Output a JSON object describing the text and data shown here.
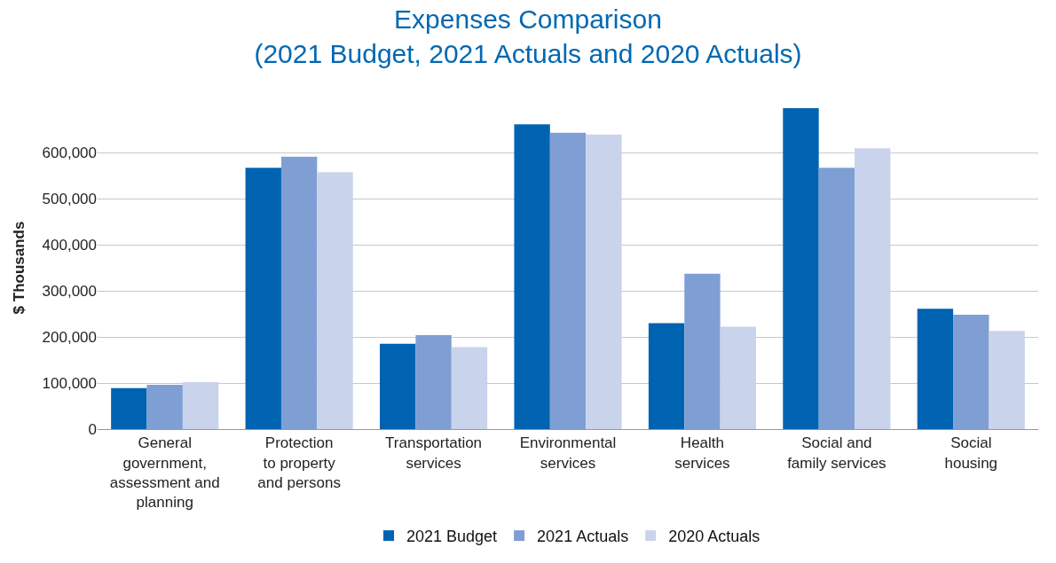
{
  "chart_data": {
    "type": "bar",
    "title": "Expenses Comparison\n(2021 Budget, 2021 Actuals and 2020 Actuals)",
    "ylabel": "$ Thousands",
    "categories": [
      "General\ngovernment,\nassessment and\nplanning",
      "Protection\nto property\nand persons",
      "Transportation\nservices",
      "Environmental\nservices",
      "Health\nservices",
      "Social and\nfamily services",
      "Social\nhousing"
    ],
    "series": [
      {
        "name": "2021 Budget",
        "color": "#0063b1",
        "values": [
          89000,
          567000,
          185000,
          661000,
          230000,
          696000,
          261000
        ]
      },
      {
        "name": "2021 Actuals",
        "color": "#7f9fd4",
        "values": [
          96000,
          591000,
          204000,
          643000,
          337000,
          567000,
          248000
        ]
      },
      {
        "name": "2020 Actuals",
        "color": "#c9d3ec",
        "values": [
          102000,
          557000,
          178000,
          639000,
          222000,
          609000,
          213000
        ]
      }
    ],
    "ylim": [
      0,
      700000
    ],
    "yticks": [
      {
        "value": 0,
        "label": "0"
      },
      {
        "value": 100000,
        "label": "100,000"
      },
      {
        "value": 200000,
        "label": "200,000"
      },
      {
        "value": 300000,
        "label": "300,000"
      },
      {
        "value": 400000,
        "label": "400,000"
      },
      {
        "value": 500000,
        "label": "500,000"
      },
      {
        "value": 600000,
        "label": "600,000"
      }
    ],
    "grid": "y",
    "legend": "bottom"
  }
}
